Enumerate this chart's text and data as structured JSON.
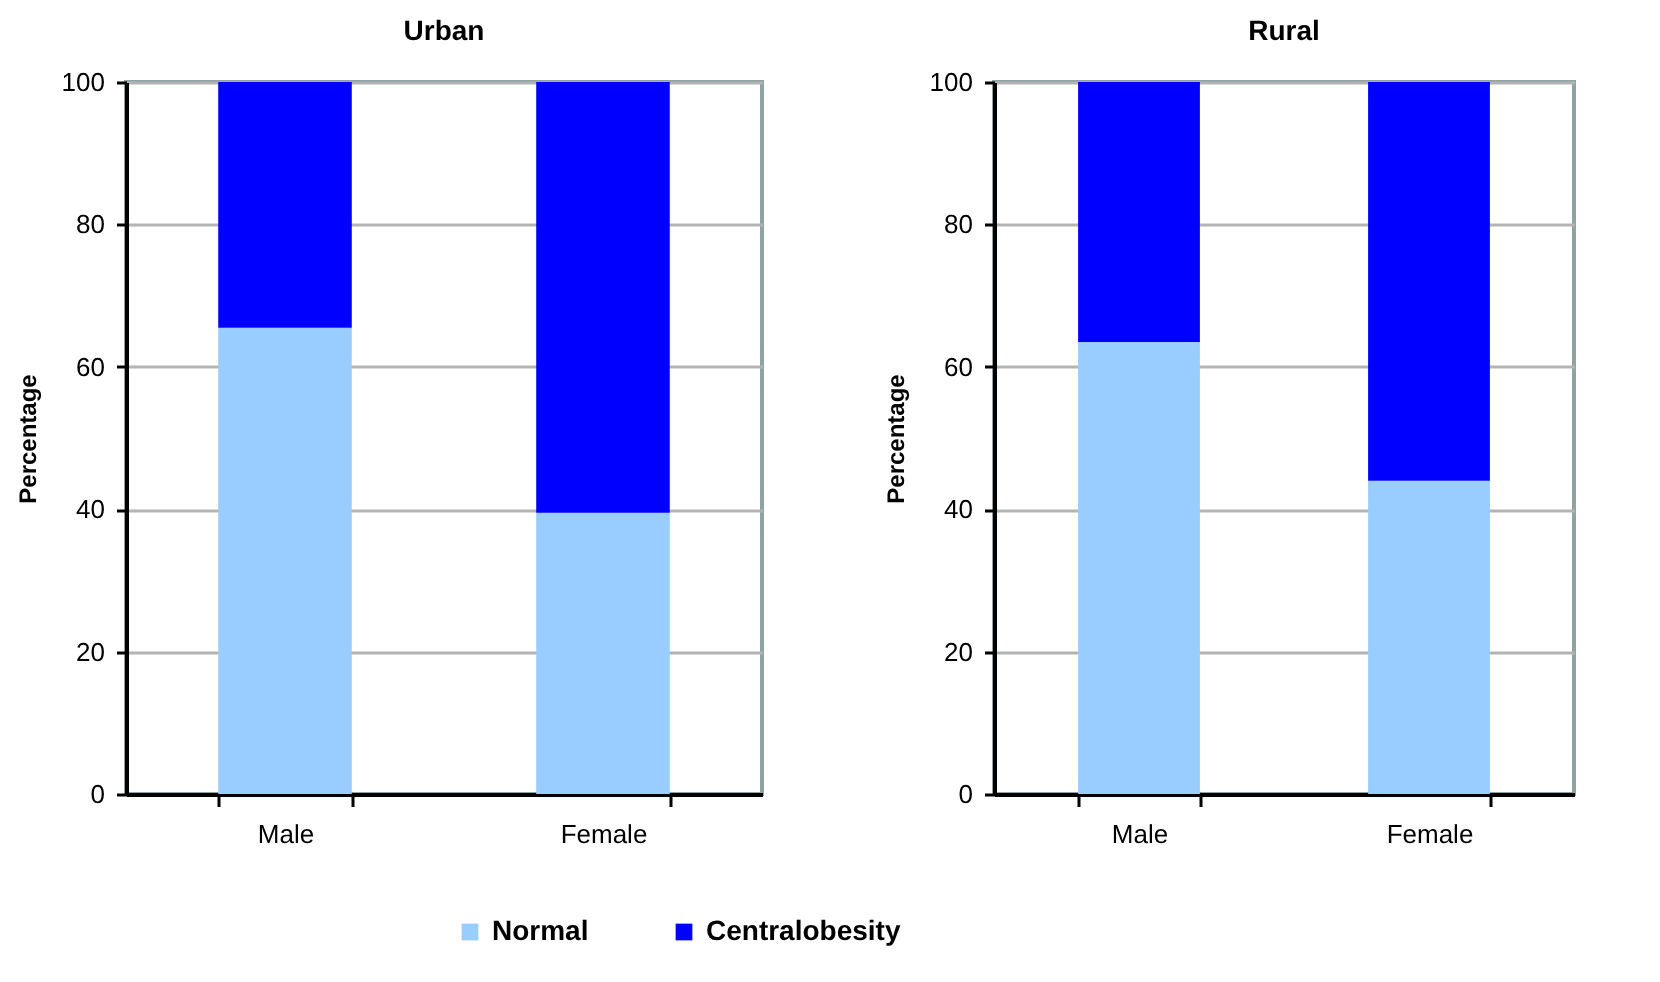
{
  "chart_data": [
    {
      "type": "bar",
      "title": "Urban",
      "ylabel": "Percentage",
      "categories": [
        "Male",
        "Female"
      ],
      "stacked": true,
      "ylim": [
        0,
        100
      ],
      "yticks": [
        0,
        20,
        40,
        60,
        80,
        100
      ],
      "grid": "y",
      "legend": "bottom",
      "series": [
        {
          "name": "Normal",
          "color": "#99ccff",
          "values": [
            65.5,
            39.5
          ]
        },
        {
          "name": "Centralobesity",
          "color": "#0000ff",
          "values": [
            34.5,
            60.5
          ]
        }
      ]
    },
    {
      "type": "bar",
      "title": "Rural",
      "ylabel": "Percentage",
      "categories": [
        "Male",
        "Female"
      ],
      "stacked": true,
      "ylim": [
        0,
        100
      ],
      "yticks": [
        0,
        20,
        40,
        60,
        80,
        100
      ],
      "grid": "y",
      "series": [
        {
          "name": "Normal",
          "color": "#99ccff",
          "values": [
            63.5,
            44
          ]
        },
        {
          "name": "Centralobesity",
          "color": "#0000ff",
          "values": [
            36.5,
            56
          ]
        }
      ]
    }
  ]
}
